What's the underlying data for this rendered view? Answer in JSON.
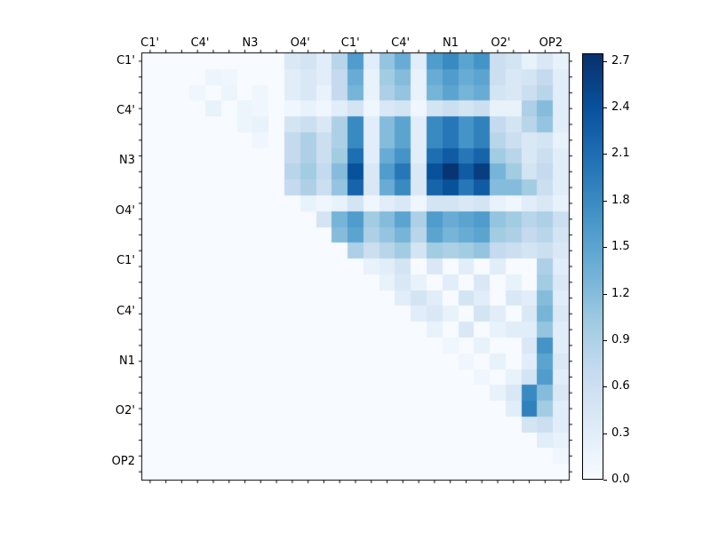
{
  "chart_data": {
    "type": "heatmap",
    "title": "",
    "xlabel": "",
    "ylabel": "",
    "colormap": "Blues",
    "vmin": 0,
    "vmax": 2.75,
    "grid": false,
    "legend_position": "colorbar-right",
    "x_tick_labels": [
      "C1'",
      "C4'",
      "N3",
      "O4'",
      "C1'",
      "C4'",
      "N1",
      "O2'",
      "OP2"
    ],
    "y_tick_labels": [
      "C1'",
      "C4'",
      "N3",
      "O4'",
      "C1'",
      "C4'",
      "N1",
      "O2'",
      "OP2"
    ],
    "colorbar_tick_labels": [
      "0.0",
      "0.3",
      "0.6",
      "0.9",
      "1.2",
      "1.5",
      "1.8",
      "2.1",
      "2.4",
      "2.7"
    ],
    "matrix": [
      [
        0,
        0,
        0,
        0,
        0,
        0,
        0,
        0,
        0,
        0.4,
        0.5,
        0.3,
        0.8,
        1.6,
        0.3,
        1.1,
        1.4,
        0.3,
        1.6,
        1.8,
        1.5,
        1.7,
        0.6,
        0.5,
        0.2,
        0.4,
        0.2
      ],
      [
        0,
        0,
        0,
        0,
        0.15,
        0.1,
        0,
        0,
        0,
        0.3,
        0.4,
        0.3,
        0.7,
        1.4,
        0.2,
        1.0,
        1.2,
        0.2,
        1.4,
        1.6,
        1.4,
        1.5,
        0.6,
        0.4,
        0.5,
        0.7,
        0.3
      ],
      [
        0,
        0,
        0,
        0.1,
        0,
        0.15,
        0,
        0.1,
        0,
        0.3,
        0.4,
        0.2,
        0.7,
        1.3,
        0.2,
        0.9,
        1.1,
        0.2,
        1.3,
        1.5,
        1.3,
        1.4,
        0.5,
        0.4,
        0.6,
        0.8,
        0.3
      ],
      [
        0,
        0,
        0,
        0,
        0.2,
        0,
        0.15,
        0.1,
        0,
        0.1,
        0.2,
        0.1,
        0.3,
        0.5,
        0.1,
        0.4,
        0.5,
        0.1,
        0.5,
        0.6,
        0.5,
        0.6,
        0.2,
        0.2,
        0.9,
        1.2,
        0.3
      ],
      [
        0,
        0,
        0,
        0,
        0,
        0,
        0.15,
        0.2,
        0,
        0.5,
        0.6,
        0.4,
        0.9,
        1.8,
        0.3,
        1.2,
        1.5,
        0.3,
        1.8,
        2.0,
        1.7,
        1.9,
        0.7,
        0.5,
        0.8,
        1.1,
        0.3
      ],
      [
        0,
        0,
        0,
        0,
        0,
        0,
        0,
        0.1,
        0,
        0.7,
        0.9,
        0.6,
        0.9,
        1.8,
        0.3,
        1.2,
        1.5,
        0.3,
        1.8,
        2.0,
        1.7,
        1.9,
        0.8,
        0.6,
        0.4,
        0.5,
        0.2
      ],
      [
        0,
        0,
        0,
        0,
        0,
        0,
        0,
        0,
        0,
        0.7,
        0.9,
        0.6,
        1.0,
        2.1,
        0.3,
        1.4,
        1.7,
        0.3,
        2.1,
        2.3,
        2.0,
        2.2,
        1.0,
        0.8,
        0.4,
        0.6,
        0.3
      ],
      [
        0,
        0,
        0,
        0,
        0,
        0,
        0,
        0,
        0,
        0.8,
        1.0,
        0.7,
        1.2,
        2.4,
        0.4,
        1.6,
        2.0,
        0.4,
        2.4,
        2.7,
        2.3,
        2.6,
        1.3,
        1.0,
        0.5,
        0.7,
        0.3
      ],
      [
        0,
        0,
        0,
        0,
        0,
        0,
        0,
        0,
        0,
        0.7,
        0.9,
        0.6,
        1.1,
        2.2,
        0.4,
        1.4,
        1.8,
        0.4,
        2.2,
        2.4,
        2.0,
        2.3,
        1.2,
        1.2,
        1.0,
        0.6,
        0.3
      ],
      [
        0,
        0,
        0,
        0,
        0,
        0,
        0,
        0,
        0,
        0,
        0.2,
        0.1,
        0.2,
        0.5,
        0.1,
        0.3,
        0.4,
        0.1,
        0.5,
        0.5,
        0.4,
        0.5,
        0.2,
        0.1,
        0.3,
        0.4,
        0.2
      ],
      [
        0,
        0,
        0,
        0,
        0,
        0,
        0,
        0,
        0,
        0,
        0,
        0.5,
        1.3,
        1.6,
        1.0,
        1.2,
        1.5,
        0.9,
        1.6,
        1.4,
        1.5,
        1.6,
        1.1,
        1.0,
        0.8,
        0.9,
        0.6
      ],
      [
        0,
        0,
        0,
        0,
        0,
        0,
        0,
        0,
        0,
        0,
        0,
        0,
        1.2,
        1.5,
        0.9,
        1.1,
        1.3,
        0.8,
        1.5,
        1.3,
        1.4,
        1.5,
        1.0,
        0.9,
        0.7,
        0.8,
        0.5
      ],
      [
        0,
        0,
        0,
        0,
        0,
        0,
        0,
        0,
        0,
        0,
        0,
        0,
        0,
        0.9,
        0.6,
        0.8,
        1.0,
        0.5,
        1.0,
        0.9,
        1.0,
        1.1,
        0.7,
        0.6,
        0.5,
        0.6,
        0.4
      ],
      [
        0,
        0,
        0,
        0,
        0,
        0,
        0,
        0,
        0,
        0,
        0,
        0,
        0,
        0,
        0.2,
        0.3,
        0.5,
        0,
        0.4,
        0,
        0.3,
        0,
        0.3,
        0,
        0,
        0.9,
        0.3
      ],
      [
        0,
        0,
        0,
        0,
        0,
        0,
        0,
        0,
        0,
        0,
        0,
        0,
        0,
        0,
        0,
        0.2,
        0.4,
        0.2,
        0,
        0.3,
        0,
        0.4,
        0,
        0.2,
        0,
        1.0,
        0.4
      ],
      [
        0,
        0,
        0,
        0,
        0,
        0,
        0,
        0,
        0,
        0,
        0,
        0,
        0,
        0,
        0,
        0,
        0.3,
        0.5,
        0.3,
        0,
        0.5,
        0.3,
        0,
        0.4,
        0.3,
        1.2,
        0.3
      ],
      [
        0,
        0,
        0,
        0,
        0,
        0,
        0,
        0,
        0,
        0,
        0,
        0,
        0,
        0,
        0,
        0,
        0,
        0.3,
        0.4,
        0.2,
        0,
        0.5,
        0.3,
        0,
        0.4,
        1.3,
        0.4
      ],
      [
        0,
        0,
        0,
        0,
        0,
        0,
        0,
        0,
        0,
        0,
        0,
        0,
        0,
        0,
        0,
        0,
        0,
        0,
        0.2,
        0,
        0.4,
        0,
        0.2,
        0.3,
        0.3,
        1.1,
        0.3
      ],
      [
        0,
        0,
        0,
        0,
        0,
        0,
        0,
        0,
        0,
        0,
        0,
        0,
        0,
        0,
        0,
        0,
        0,
        0,
        0,
        0.1,
        0,
        0.2,
        0,
        0,
        0.4,
        1.7,
        0.3
      ],
      [
        0,
        0,
        0,
        0,
        0,
        0,
        0,
        0,
        0,
        0,
        0,
        0,
        0,
        0,
        0,
        0,
        0,
        0,
        0,
        0,
        0.1,
        0,
        0.2,
        0,
        0.3,
        1.5,
        0.4
      ],
      [
        0,
        0,
        0,
        0,
        0,
        0,
        0,
        0,
        0,
        0,
        0,
        0,
        0,
        0,
        0,
        0,
        0,
        0,
        0,
        0,
        0,
        0.1,
        0,
        0.2,
        0.5,
        1.6,
        0.3
      ],
      [
        0,
        0,
        0,
        0,
        0,
        0,
        0,
        0,
        0,
        0,
        0,
        0,
        0,
        0,
        0,
        0,
        0,
        0,
        0,
        0,
        0,
        0,
        0.2,
        0.4,
        1.8,
        1.2,
        0.4
      ],
      [
        0,
        0,
        0,
        0,
        0,
        0,
        0,
        0,
        0,
        0,
        0,
        0,
        0,
        0,
        0,
        0,
        0,
        0,
        0,
        0,
        0,
        0,
        0,
        0.3,
        1.9,
        1.0,
        0.3
      ],
      [
        0,
        0,
        0,
        0,
        0,
        0,
        0,
        0,
        0,
        0,
        0,
        0,
        0,
        0,
        0,
        0,
        0,
        0,
        0,
        0,
        0,
        0,
        0,
        0,
        0.5,
        0.6,
        0.3
      ],
      [
        0,
        0,
        0,
        0,
        0,
        0,
        0,
        0,
        0,
        0,
        0,
        0,
        0,
        0,
        0,
        0,
        0,
        0,
        0,
        0,
        0,
        0,
        0,
        0,
        0,
        0.3,
        0.2
      ],
      [
        0,
        0,
        0,
        0,
        0,
        0,
        0,
        0,
        0,
        0,
        0,
        0,
        0,
        0,
        0,
        0,
        0,
        0,
        0,
        0,
        0,
        0,
        0,
        0,
        0,
        0,
        0.1
      ],
      [
        0,
        0,
        0,
        0,
        0,
        0,
        0,
        0,
        0,
        0,
        0,
        0,
        0,
        0,
        0,
        0,
        0,
        0,
        0,
        0,
        0,
        0,
        0,
        0,
        0,
        0,
        0
      ]
    ]
  },
  "colors": {
    "background": "#ffffff",
    "axis": "#000000",
    "blues_anchors": [
      "#f7fbff",
      "#deebf7",
      "#c6dbef",
      "#9ecae1",
      "#6baed6",
      "#4292c6",
      "#2171b5",
      "#08519c",
      "#08306b"
    ]
  }
}
